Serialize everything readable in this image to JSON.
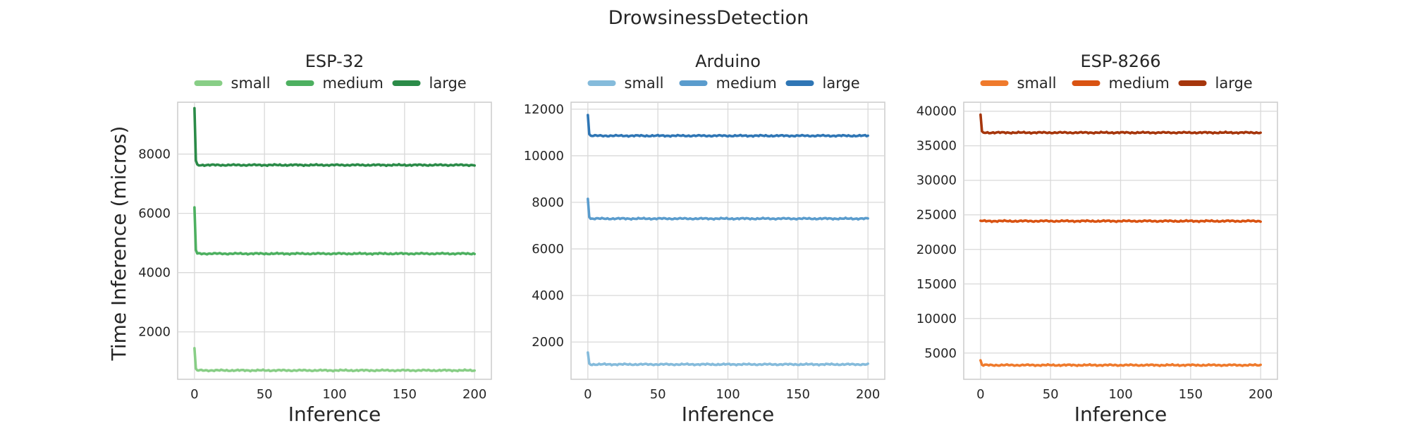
{
  "chart_data": {
    "title": "DrowsinessDetection",
    "ylabel": "Time Inference (micros)",
    "grid": true,
    "legend_position": "top-center",
    "panels": [
      {
        "type": "line",
        "title": "ESP-32",
        "xlabel": "Inference",
        "xlim": [
          -12,
          212
        ],
        "ylim": [
          400,
          9750
        ],
        "xticks": [
          0,
          50,
          100,
          150,
          200
        ],
        "yticks": [
          2000,
          4000,
          6000,
          8000
        ],
        "series": [
          {
            "name": "small",
            "color": "#88ce86",
            "start": 1450,
            "steady": 700
          },
          {
            "name": "medium",
            "color": "#4db060",
            "start": 6200,
            "steady": 4640
          },
          {
            "name": "large",
            "color": "#2b8b48",
            "start": 9550,
            "steady": 7630
          }
        ]
      },
      {
        "type": "line",
        "title": "Arduino",
        "xlabel": "Inference",
        "xlim": [
          -12,
          212
        ],
        "ylim": [
          400,
          12300
        ],
        "xticks": [
          0,
          50,
          100,
          150,
          200
        ],
        "yticks": [
          2000,
          4000,
          6000,
          8000,
          10000,
          12000
        ],
        "series": [
          {
            "name": "small",
            "color": "#85bbdb",
            "start": 1550,
            "steady": 1040
          },
          {
            "name": "medium",
            "color": "#5a9ccd",
            "start": 8150,
            "steady": 7300
          },
          {
            "name": "large",
            "color": "#2f76b5",
            "start": 11750,
            "steady": 10860
          }
        ]
      },
      {
        "type": "line",
        "title": "ESP-8266",
        "xlabel": "Inference",
        "xlim": [
          -12,
          212
        ],
        "ylim": [
          1200,
          41300
        ],
        "xticks": [
          0,
          50,
          100,
          150,
          200
        ],
        "yticks": [
          5000,
          10000,
          15000,
          20000,
          25000,
          30000,
          35000,
          40000
        ],
        "series": [
          {
            "name": "small",
            "color": "#ef7a2c",
            "start": 3950,
            "steady": 3250
          },
          {
            "name": "medium",
            "color": "#d95312",
            "start": 24150,
            "steady": 24100
          },
          {
            "name": "large",
            "color": "#a6360c",
            "start": 39500,
            "steady": 36900
          }
        ]
      }
    ]
  }
}
